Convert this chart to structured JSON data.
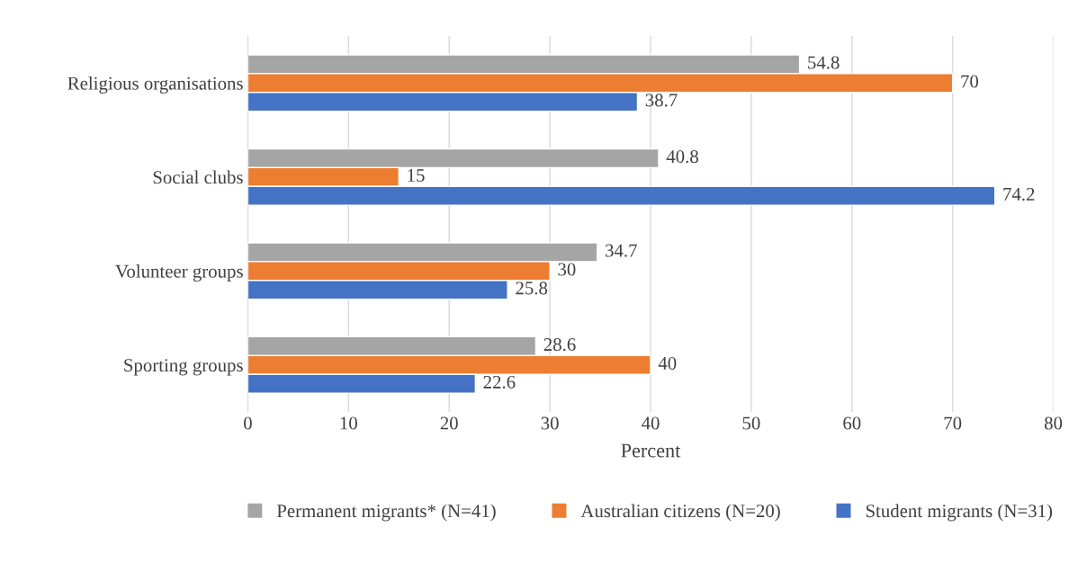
{
  "chart_data": {
    "type": "bar",
    "orientation": "horizontal",
    "xlabel": "Percent",
    "categories": [
      "Religious organisations",
      "Social clubs",
      "Volunteer groups",
      "Sporting groups"
    ],
    "series": [
      {
        "name": "Permanent migrants* (N=41)",
        "color": "#a5a5a5",
        "values": [
          54.8,
          40.8,
          34.7,
          28.6
        ]
      },
      {
        "name": "Australian citizens (N=20)",
        "color": "#ed7d31",
        "values": [
          70,
          15,
          30,
          40
        ]
      },
      {
        "name": "Student migrants (N=31)",
        "color": "#4472c4",
        "values": [
          38.7,
          74.2,
          25.8,
          22.6
        ]
      }
    ],
    "xlim": [
      0,
      80
    ],
    "xticks": [
      0,
      10,
      20,
      30,
      40,
      50,
      60,
      70,
      80
    ],
    "grid": "x",
    "legend": "bottom",
    "data_labels": true
  }
}
